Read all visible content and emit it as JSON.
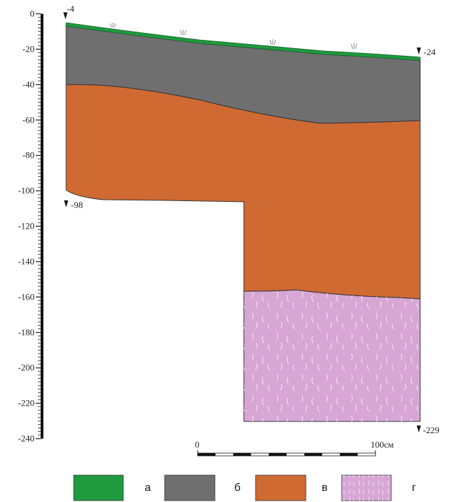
{
  "depth_axis": {
    "min": 0,
    "max": -240,
    "ticks": [
      "0",
      "-20",
      "-40",
      "-60",
      "-80",
      "-100",
      "-120",
      "-140",
      "-160",
      "-180",
      "-200",
      "-220",
      "-240"
    ]
  },
  "elevation_marks": {
    "top_left": "-4",
    "top_right": "-24",
    "bottom_left": "-98",
    "bottom_right": "-229"
  },
  "scale_bar": {
    "start_label": "0",
    "end_label": "100см",
    "segments": 10
  },
  "legend": [
    {
      "key": "a",
      "label": "а",
      "color": "#1f9a3f"
    },
    {
      "key": "b",
      "label": "б",
      "color": "#6f6f6f"
    },
    {
      "key": "v",
      "label": "в",
      "color": "#cf6a32"
    },
    {
      "key": "g",
      "label": "г",
      "color": "#d7a6d4"
    }
  ],
  "colors": {
    "turf": "#1f9a3f",
    "dark_layer": "#6f6f6f",
    "orange_layer": "#cf6a32",
    "pink_layer": "#d7a6d4",
    "outline": "#333333"
  }
}
